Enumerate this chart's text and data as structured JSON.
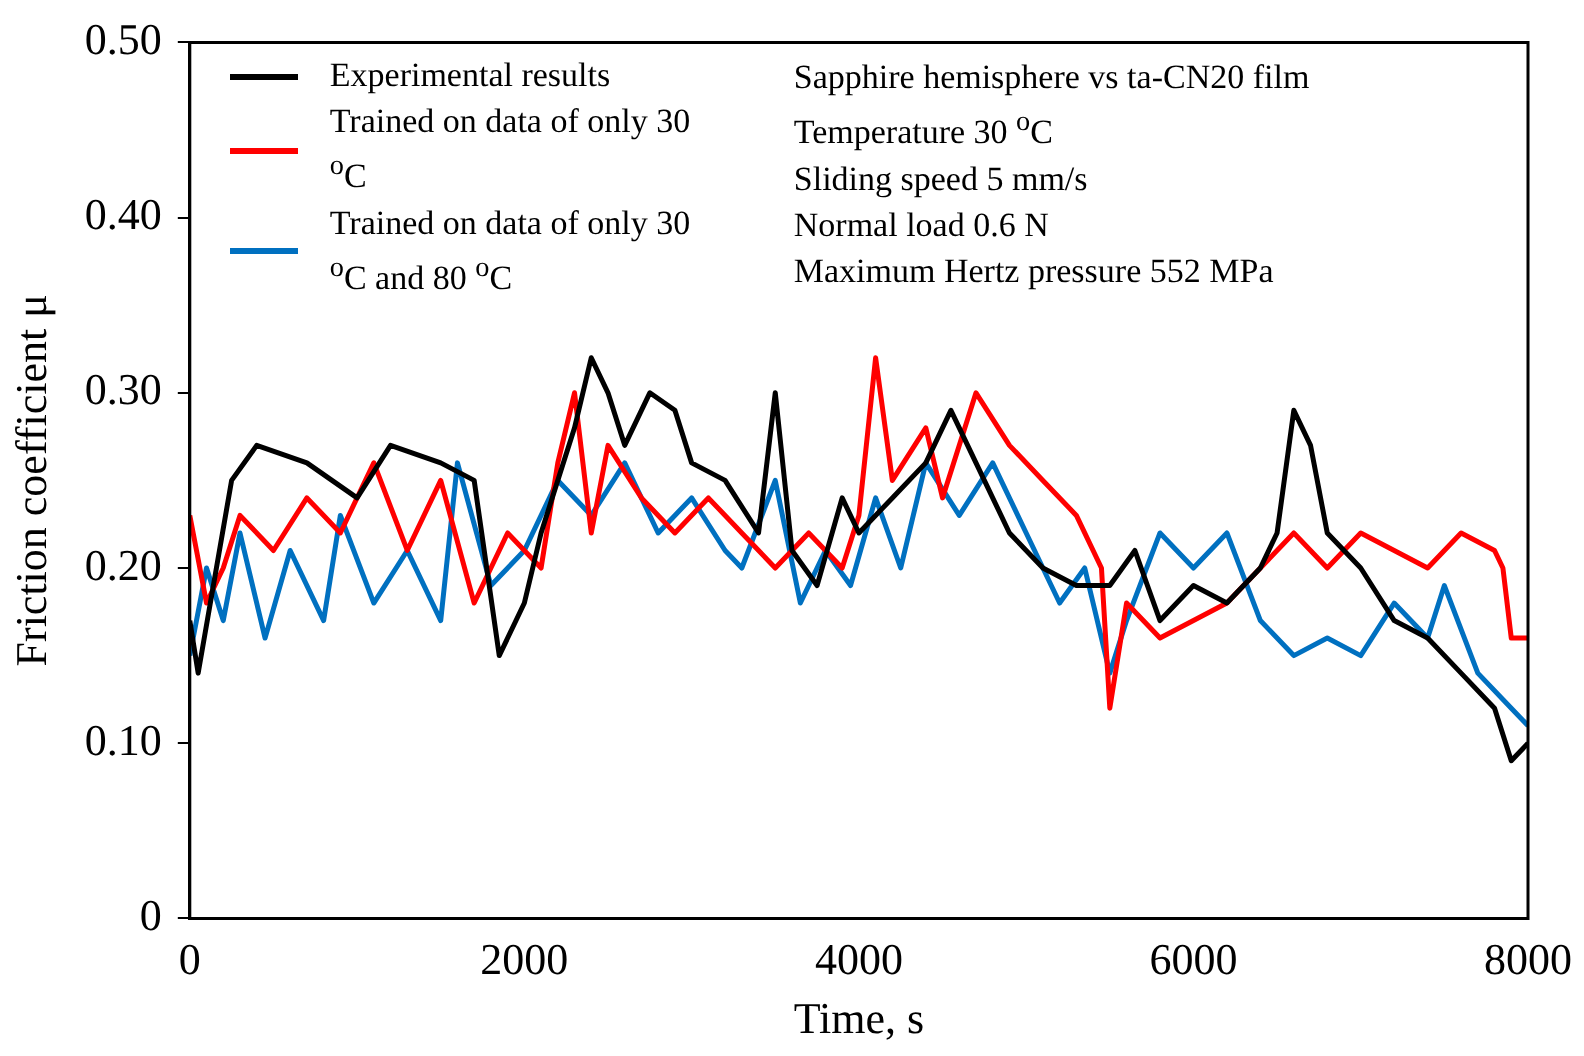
{
  "chart_data": {
    "type": "line",
    "xlabel": "Time, s",
    "ylabel": "Friction coefficient μ",
    "xlim": [
      0,
      8000
    ],
    "xticks": [
      0,
      2000,
      4000,
      6000,
      8000
    ],
    "ylim": [
      0,
      0.5
    ],
    "yticks": [
      0,
      {
        "value": 0.1,
        "label": "0.10"
      },
      {
        "value": 0.2,
        "label": "0.20"
      },
      {
        "value": 0.3,
        "label": "0.30"
      },
      {
        "value": 0.4,
        "label": "0.40"
      },
      {
        "value": 0.5,
        "label": "0.50"
      }
    ],
    "grid": false,
    "legend": "top left",
    "marker": "none",
    "line_style": "solid",
    "annotations": [
      "Sapphire hemisphere vs ta-CN20 film",
      "Temperature 30 $^{o}$C",
      "Sliding speed 5 mm/s",
      "Normal load  0.6 N",
      "Maximum Hertz pressure 552 MPa"
    ],
    "series": [
      {
        "name": "Experimental results",
        "color": "#000000",
        "x": [
          0,
          50,
          250,
          400,
          700,
          1000,
          1200,
          1500,
          1700,
          1850,
          2000,
          2100,
          2300,
          2400,
          2500,
          2600,
          2750,
          2900,
          3000,
          3200,
          3400,
          3500,
          3600,
          3750,
          3900,
          4000,
          4200,
          4400,
          4550,
          4700,
          4900,
          5100,
          5300,
          5500,
          5650,
          5800,
          6000,
          6200,
          6400,
          6500,
          6600,
          6700,
          6800,
          7000,
          7200,
          7400,
          7600,
          7800,
          7900,
          8000
        ],
        "values": [
          0.17,
          0.14,
          0.25,
          0.27,
          0.26,
          0.24,
          0.27,
          0.26,
          0.25,
          0.15,
          0.18,
          0.22,
          0.28,
          0.32,
          0.3,
          0.27,
          0.3,
          0.29,
          0.26,
          0.25,
          0.22,
          0.3,
          0.21,
          0.19,
          0.24,
          0.22,
          0.24,
          0.26,
          0.29,
          0.26,
          0.22,
          0.2,
          0.19,
          0.19,
          0.21,
          0.17,
          0.19,
          0.18,
          0.2,
          0.22,
          0.29,
          0.27,
          0.22,
          0.2,
          0.17,
          0.16,
          0.14,
          0.12,
          0.09,
          0.1
        ]
      },
      {
        "name": "Trained on data of only 30 $^{o}$C",
        "color": "#ff0000",
        "x": [
          0,
          100,
          200,
          300,
          500,
          700,
          900,
          1100,
          1300,
          1500,
          1700,
          1900,
          2100,
          2200,
          2300,
          2400,
          2500,
          2700,
          2900,
          3100,
          3300,
          3500,
          3700,
          3900,
          4000,
          4100,
          4200,
          4400,
          4500,
          4700,
          4900,
          5100,
          5300,
          5450,
          5500,
          5600,
          5800,
          6000,
          6200,
          6400,
          6600,
          6800,
          7000,
          7200,
          7400,
          7600,
          7800,
          7850,
          7900,
          8000
        ],
        "values": [
          0.23,
          0.18,
          0.2,
          0.23,
          0.21,
          0.24,
          0.22,
          0.26,
          0.21,
          0.25,
          0.18,
          0.22,
          0.2,
          0.26,
          0.3,
          0.22,
          0.27,
          0.24,
          0.22,
          0.24,
          0.22,
          0.2,
          0.22,
          0.2,
          0.23,
          0.32,
          0.25,
          0.28,
          0.24,
          0.3,
          0.27,
          0.25,
          0.23,
          0.2,
          0.12,
          0.18,
          0.16,
          0.17,
          0.18,
          0.2,
          0.22,
          0.2,
          0.22,
          0.21,
          0.2,
          0.22,
          0.21,
          0.2,
          0.16,
          0.16
        ]
      },
      {
        "name": "Trained on data of only 30 $^{o}$C and 80 $^{o}$C",
        "color": "#0070c0",
        "x": [
          0,
          100,
          200,
          300,
          450,
          600,
          800,
          900,
          1100,
          1300,
          1500,
          1600,
          1800,
          2000,
          2200,
          2400,
          2600,
          2800,
          3000,
          3200,
          3300,
          3500,
          3650,
          3800,
          3950,
          4100,
          4250,
          4400,
          4600,
          4800,
          5000,
          5200,
          5350,
          5500,
          5600,
          5800,
          6000,
          6200,
          6400,
          6600,
          6800,
          7000,
          7200,
          7400,
          7500,
          7700,
          7900,
          8000
        ],
        "values": [
          0.15,
          0.2,
          0.17,
          0.22,
          0.16,
          0.21,
          0.17,
          0.23,
          0.18,
          0.21,
          0.17,
          0.26,
          0.19,
          0.21,
          0.25,
          0.23,
          0.26,
          0.22,
          0.24,
          0.21,
          0.2,
          0.25,
          0.18,
          0.21,
          0.19,
          0.24,
          0.2,
          0.26,
          0.23,
          0.26,
          0.22,
          0.18,
          0.2,
          0.14,
          0.17,
          0.22,
          0.2,
          0.22,
          0.17,
          0.15,
          0.16,
          0.15,
          0.18,
          0.16,
          0.19,
          0.14,
          0.12,
          0.11
        ]
      }
    ]
  }
}
